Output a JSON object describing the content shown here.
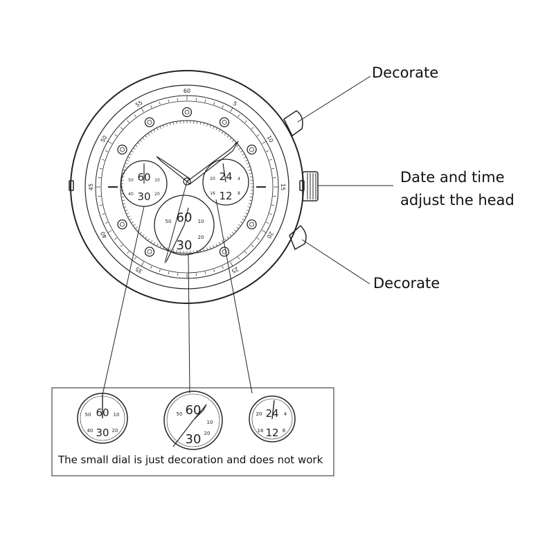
{
  "labels": {
    "crown_top": "Decorate",
    "crown_head_line1": "Date and time",
    "crown_head_line2": "adjust the head",
    "crown_bottom": "Decorate"
  },
  "caption": "The small dial is just decoration and does not work",
  "dial": {
    "minute_marks": [
      "55",
      "5",
      "50",
      "10",
      "45",
      "15",
      "40",
      "20",
      "35",
      "25",
      "60"
    ]
  },
  "subdials": {
    "left": {
      "top": "60",
      "bottom": "30",
      "side_left_top": "50",
      "side_left_bottom": "40",
      "side_right_top": "10",
      "side_right_bottom": "20"
    },
    "center": {
      "top": "60",
      "bottom": "30",
      "side_left": "50",
      "side_right": "10",
      "side_right_bottom": "20"
    },
    "right": {
      "top": "24",
      "bottom": "12",
      "side_left_top": "20",
      "side_left_bottom": "16",
      "side_right_top": "4",
      "side_right_bottom": "8"
    }
  }
}
